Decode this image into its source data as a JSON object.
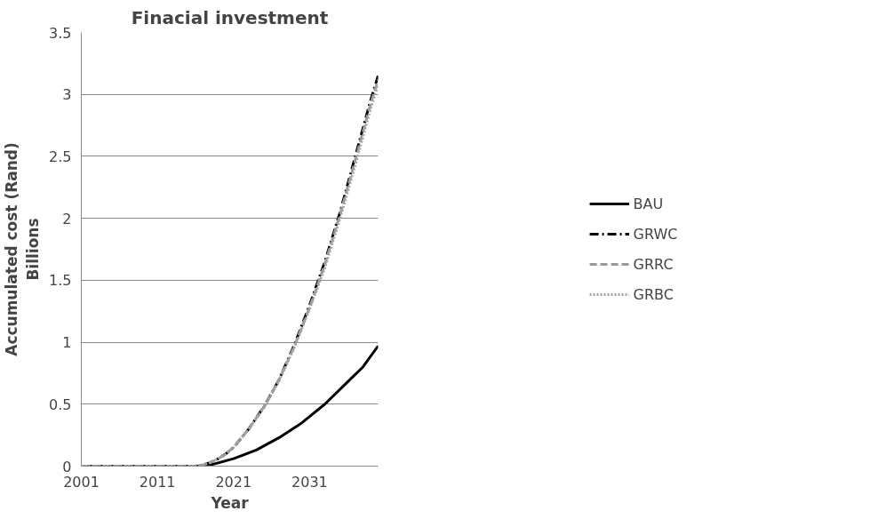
{
  "chart_data": {
    "type": "line",
    "title": "Finacial investment",
    "xlabel": "Year",
    "ylabel": "Accumulated cost (Rand)\nBillions",
    "xlim": [
      2001,
      2040
    ],
    "xticks": [
      2001,
      2011,
      2021,
      2031
    ],
    "ylim": [
      0,
      3.5
    ],
    "yticks": [
      0,
      0.5,
      1,
      1.5,
      2,
      2.5,
      3,
      3.5
    ],
    "grid": "y",
    "legend": "right",
    "marker": "none",
    "series": [
      {
        "name": "BAU",
        "color": "#000000",
        "line_style": "solid",
        "x": [
          2001,
          2017,
          2018,
          2021,
          2024,
          2027,
          2030,
          2033,
          2036,
          2038,
          2040
        ],
        "values": [
          0,
          0,
          0.01,
          0.06,
          0.13,
          0.23,
          0.35,
          0.5,
          0.68,
          0.8,
          0.97
        ]
      },
      {
        "name": "GRWC",
        "color": "#000000",
        "line_style": "dashdot",
        "x": [
          2001,
          2016,
          2017,
          2018,
          2019,
          2020,
          2021,
          2023,
          2025,
          2027,
          2029,
          2031,
          2033,
          2035,
          2037,
          2039,
          2040
        ],
        "values": [
          0,
          0,
          0.01,
          0.03,
          0.06,
          0.1,
          0.15,
          0.3,
          0.48,
          0.7,
          0.98,
          1.3,
          1.65,
          2.05,
          2.5,
          2.95,
          3.15
        ]
      },
      {
        "name": "GRRC",
        "color": "#999999",
        "line_style": "dashed",
        "x": [
          2001,
          2016,
          2017,
          2018,
          2019,
          2020,
          2021,
          2023,
          2025,
          2027,
          2029,
          2031,
          2033,
          2035,
          2037,
          2039,
          2040
        ],
        "values": [
          0,
          0,
          0.01,
          0.03,
          0.06,
          0.1,
          0.15,
          0.3,
          0.48,
          0.7,
          0.97,
          1.28,
          1.63,
          2.03,
          2.47,
          2.92,
          3.12
        ]
      },
      {
        "name": "GRBC",
        "color": "#a6a6a6",
        "line_style": "dotted",
        "x": [
          2001,
          2016,
          2017,
          2018,
          2019,
          2020,
          2021,
          2023,
          2025,
          2027,
          2029,
          2031,
          2033,
          2035,
          2037,
          2039,
          2040
        ],
        "values": [
          0,
          0,
          0.01,
          0.03,
          0.06,
          0.1,
          0.15,
          0.3,
          0.47,
          0.69,
          0.96,
          1.27,
          1.6,
          2.0,
          2.43,
          2.88,
          3.08
        ]
      }
    ]
  }
}
